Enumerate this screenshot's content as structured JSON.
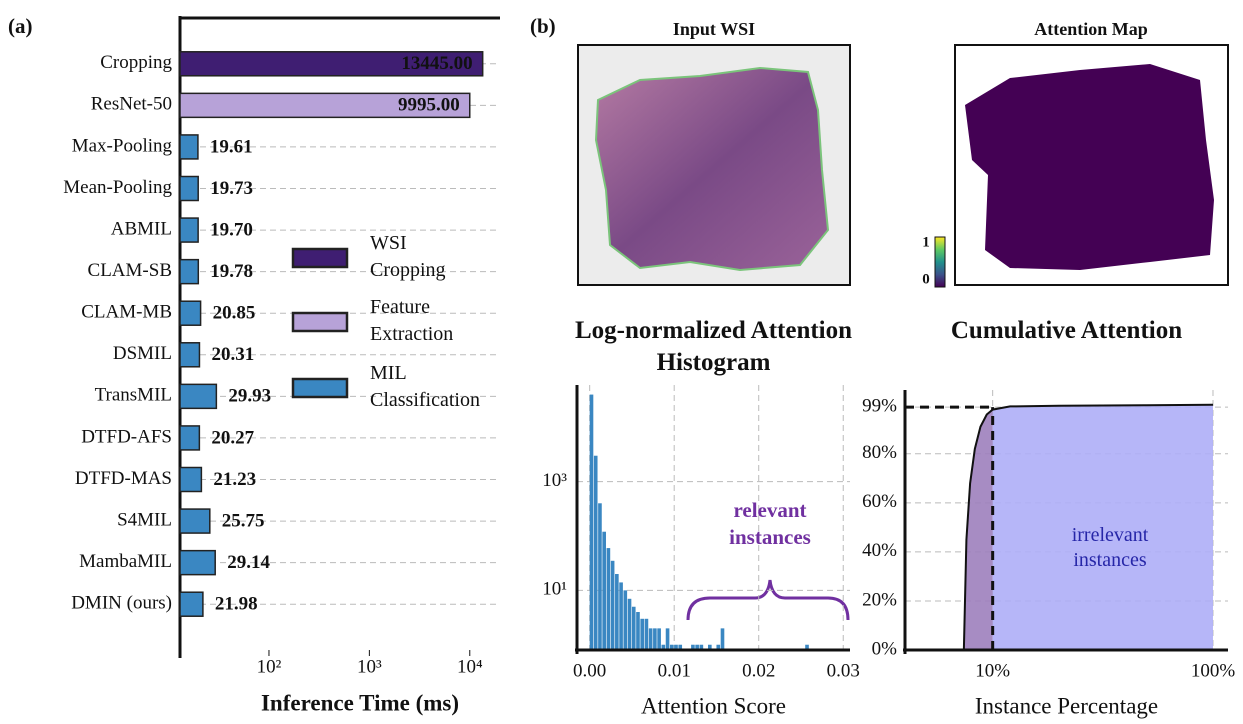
{
  "chart_data": [
    {
      "type": "bar",
      "panel_label": "(a)",
      "xlabel": "Inference Time (ms)",
      "xscale": "log",
      "grid": true,
      "categories": [
        "Cropping",
        "ResNet-50",
        "Max-Pooling",
        "Mean-Pooling",
        "ABMIL",
        "CLAM-SB",
        "CLAM-MB",
        "DSMIL",
        "TransMIL",
        "DTFD-AFS",
        "DTFD-MAS",
        "S4MIL",
        "MambaMIL",
        "DMIN (ours)"
      ],
      "values": [
        13445,
        9995,
        19.61,
        19.73,
        19.7,
        19.78,
        20.85,
        20.31,
        29.93,
        20.27,
        21.23,
        25.75,
        29.14,
        21.98
      ],
      "value_labels": [
        "13445.00",
        "9995.00",
        "19.61",
        "19.73",
        "19.70",
        "19.78",
        "20.85",
        "20.31",
        "29.93",
        "20.27",
        "21.23",
        "25.75",
        "29.14",
        "21.98"
      ],
      "colors": [
        "#3f1e72",
        "#b7a2d8",
        "#3a87c2",
        "#3a87c2",
        "#3a87c2",
        "#3a87c2",
        "#3a87c2",
        "#3a87c2",
        "#3a87c2",
        "#3a87c2",
        "#3a87c2",
        "#3a87c2",
        "#3a87c2",
        "#3a87c2"
      ],
      "legend": [
        {
          "name": "WSI Cropping",
          "color": "#3f1e72"
        },
        {
          "name": "Feature Extraction",
          "color": "#b7a2d8"
        },
        {
          "name": "MIL Classification",
          "color": "#3a87c2"
        }
      ],
      "xlim": [
        13,
        20000
      ],
      "xticks": [
        {
          "value": 100,
          "label": "10²"
        },
        {
          "value": 1000,
          "label": "10³"
        },
        {
          "value": 10000,
          "label": "10⁴"
        }
      ]
    },
    {
      "type": "image",
      "panel_label": "(b)",
      "title": "Input WSI"
    },
    {
      "type": "heatmap",
      "title": "Attention Map",
      "clim": [
        0,
        1
      ],
      "colorbar_ticks": [
        0,
        1
      ]
    },
    {
      "type": "histogram",
      "title": "Log-normalized Attention Histogram",
      "xlabel": "Attention Score",
      "yscale": "log",
      "grid": true,
      "color": "#3a87c2",
      "annotation": "relevant instances",
      "bins": [
        0,
        0.0005,
        0.001,
        0.0015,
        0.002,
        0.0025,
        0.003,
        0.0035,
        0.004,
        0.0045,
        0.005,
        0.0055,
        0.006,
        0.0065,
        0.007,
        0.0075,
        0.008,
        0.0085,
        0.009,
        0.0095,
        0.01,
        0.0105,
        0.011,
        0.0115,
        0.012,
        0.0125,
        0.013,
        0.0135,
        0.014,
        0.0145,
        0.015,
        0.0155,
        0.016,
        0.0165,
        0.017,
        0.0175,
        0.018,
        0.0185,
        0.019,
        0.0195,
        0.02,
        0.0205,
        0.021,
        0.0215,
        0.022,
        0.0225,
        0.023,
        0.0235,
        0.024,
        0.0245,
        0.025,
        0.0255,
        0.026,
        0.0265,
        0.027,
        0.0275,
        0.028,
        0.0285,
        0.029,
        0.0295,
        0.03
      ],
      "counts": [
        40000,
        3000,
        400,
        120,
        60,
        35,
        20,
        14,
        10,
        7,
        5,
        4,
        3,
        3,
        2,
        2,
        2,
        1,
        2,
        1,
        1,
        1,
        0,
        0,
        1,
        1,
        1,
        0,
        1,
        0,
        1,
        2,
        0,
        0,
        0,
        0,
        0,
        0,
        0,
        0,
        0,
        0,
        0,
        0,
        0,
        0,
        0,
        0,
        0,
        0,
        0,
        1,
        0,
        0,
        0,
        0,
        0,
        0,
        0,
        0
      ],
      "xlim": [
        -0.0015,
        0.0308
      ],
      "ylim": [
        0.8,
        60000
      ],
      "xticks": [
        {
          "value": 0,
          "label": "0.00"
        },
        {
          "value": 0.01,
          "label": "0.01"
        },
        {
          "value": 0.02,
          "label": "0.02"
        },
        {
          "value": 0.03,
          "label": "0.03"
        }
      ],
      "yticks": [
        {
          "value": 10,
          "label": "10¹"
        },
        {
          "value": 1000,
          "label": "10³"
        }
      ]
    },
    {
      "type": "line",
      "title": "Cumulative Attention",
      "xlabel": "Instance Percentage",
      "xscale": "log",
      "grid": true,
      "annotation": "irrelevant instances",
      "vline": 10,
      "hline": 99,
      "fill_left": "#9d7fbd",
      "fill_right": "#aeaef7",
      "color": "#111111",
      "x": [
        7.4,
        7.6,
        7.9,
        8.3,
        8.8,
        9.4,
        10,
        12,
        20,
        50,
        100
      ],
      "values": [
        0,
        45,
        68,
        82,
        91,
        96,
        98,
        99.3,
        99.6,
        99.8,
        100
      ],
      "xlim": [
        4,
        117
      ],
      "ylim": [
        0,
        106
      ],
      "xticks": [
        {
          "value": 10,
          "label": "10%"
        },
        {
          "value": 100,
          "label": "100%"
        }
      ],
      "yticks": [
        {
          "value": 0,
          "label": "0%"
        },
        {
          "value": 20,
          "label": "20%"
        },
        {
          "value": 40,
          "label": "40%"
        },
        {
          "value": 60,
          "label": "60%"
        },
        {
          "value": 80,
          "label": "80%"
        },
        {
          "value": 99,
          "label": "99%"
        }
      ]
    }
  ]
}
